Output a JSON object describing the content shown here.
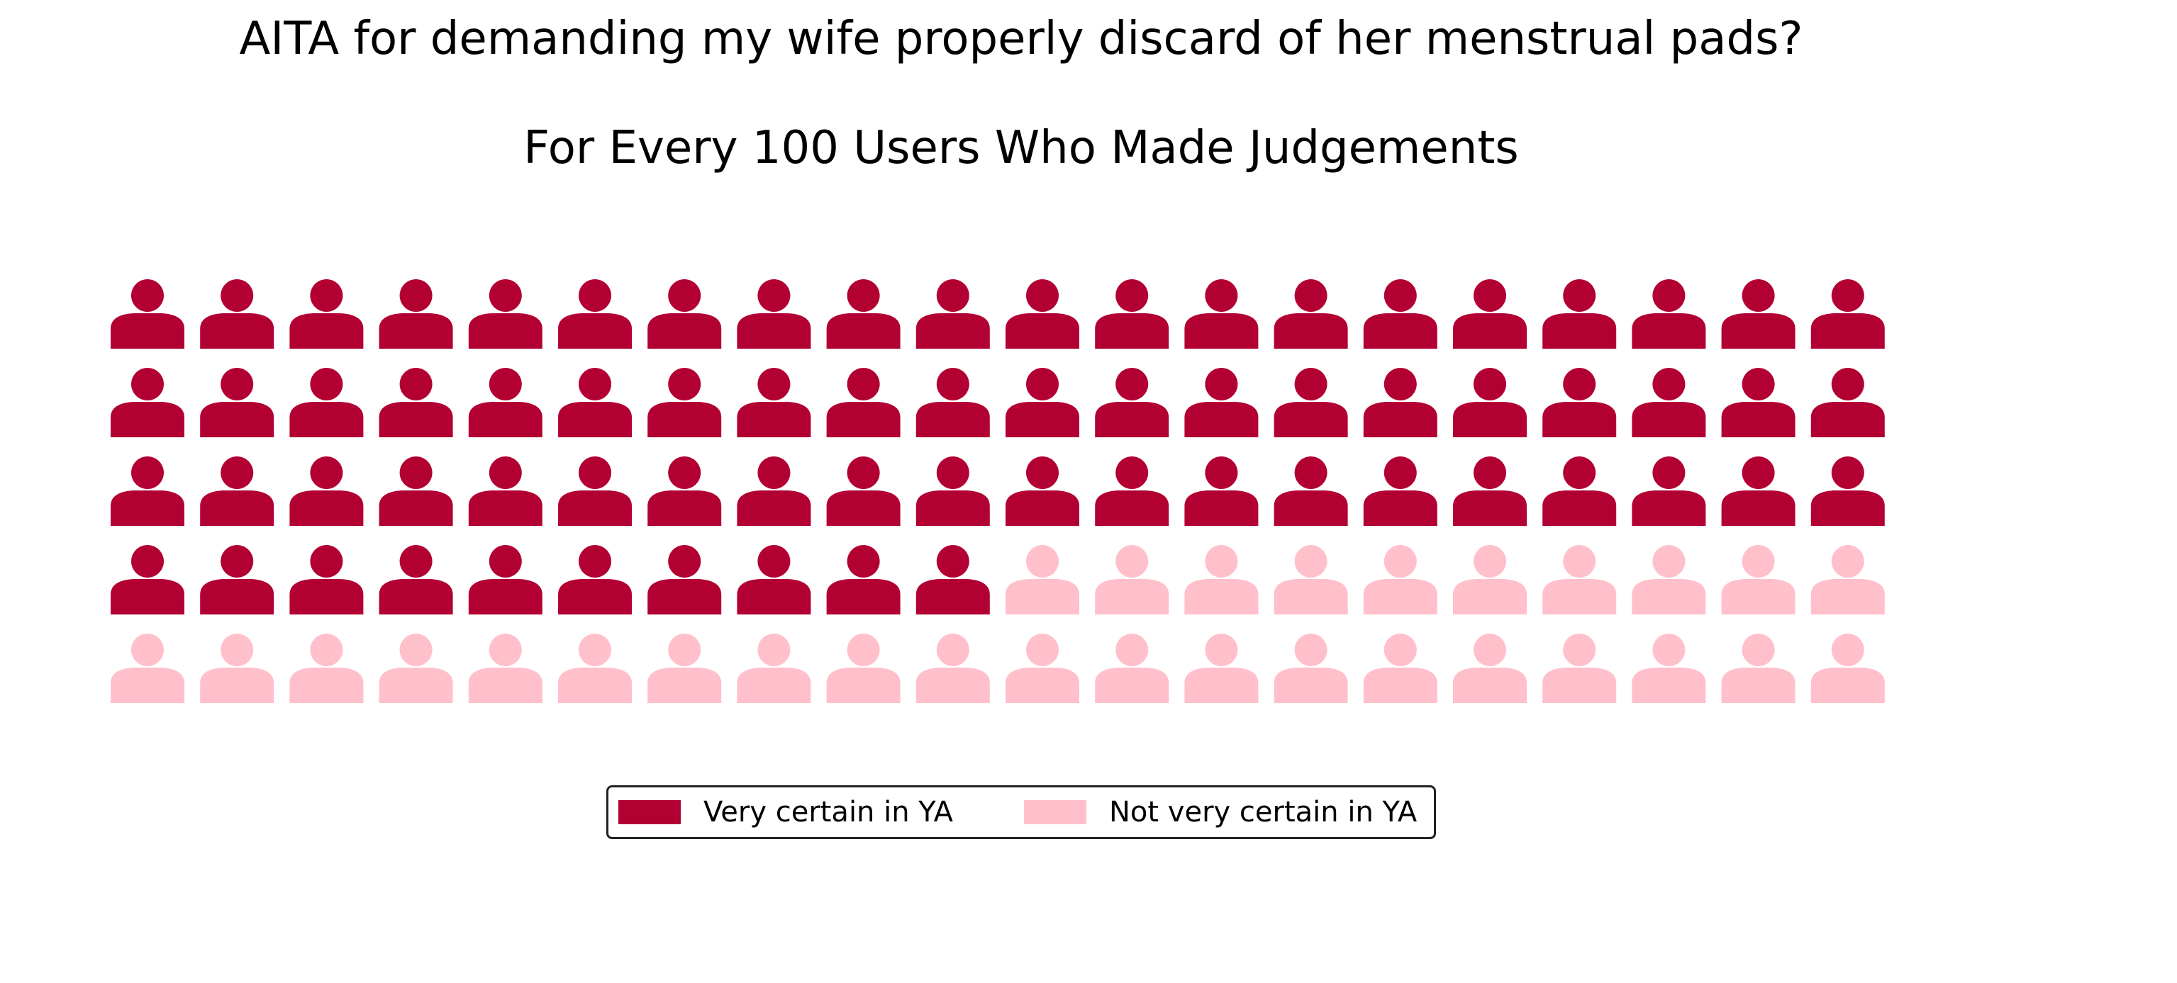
{
  "chart_data": {
    "type": "waffle",
    "title": "AITA for demanding my wife properly discard of her menstrual pads?",
    "subtitle": "For Every 100 Users Who Made Judgements",
    "rows": 5,
    "columns": 20,
    "icon": "person-icon",
    "legend_position": "bottom-center",
    "series": [
      {
        "name": "Very certain in YA",
        "value": 70,
        "color": "#b30033"
      },
      {
        "name": "Not very certain in YA",
        "value": 30,
        "color": "#ffc0cb"
      }
    ]
  }
}
